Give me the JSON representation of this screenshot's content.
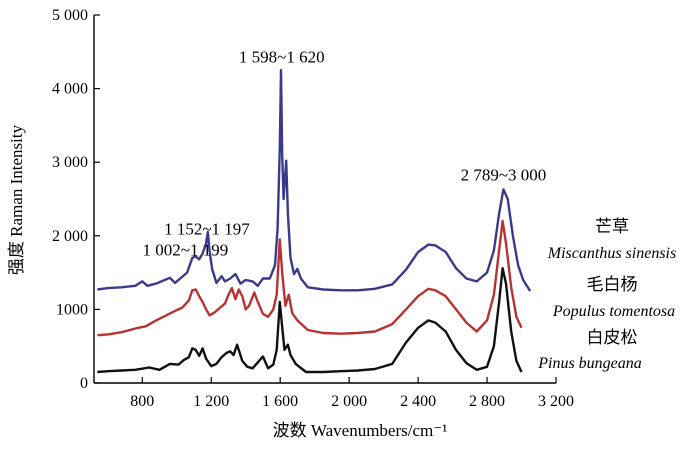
{
  "chart_data": {
    "type": "line",
    "xlabel": "波数 Wavenumbers/cm⁻¹",
    "ylabel": "强度 Raman Intensity",
    "xlim": [
      520,
      3200
    ],
    "ylim": [
      0,
      5000
    ],
    "xticks": [
      {
        "value": 800,
        "label": "800"
      },
      {
        "value": 1200,
        "label": "1 200"
      },
      {
        "value": 1600,
        "label": "1 600"
      },
      {
        "value": 2000,
        "label": "2 000"
      },
      {
        "value": 2400,
        "label": "2 400"
      },
      {
        "value": 2800,
        "label": "2 800"
      },
      {
        "value": 3200,
        "label": "3 200"
      }
    ],
    "yticks": [
      {
        "value": 0,
        "label": "0"
      },
      {
        "value": 1000,
        "label": "1000"
      },
      {
        "value": 2000,
        "label": "2 000"
      },
      {
        "value": 3000,
        "label": "3 000"
      },
      {
        "value": 4000,
        "label": "4 000"
      },
      {
        "value": 5000,
        "label": "5 000"
      }
    ],
    "annotations": [
      {
        "text": "1 598~1 620",
        "x": 1609,
        "y": 4300
      },
      {
        "text": "2 789~3 000",
        "x": 2895,
        "y": 2700
      },
      {
        "text": "1 152~1 197",
        "x": 1175,
        "y": 1960
      },
      {
        "text": "1 002~1 199",
        "x": 1050,
        "y": 1680
      }
    ],
    "series": [
      {
        "name": "芒草",
        "name_latin": "Miscanthus sinensis",
        "color": "#3a3a8c",
        "points": [
          [
            540,
            1270
          ],
          [
            600,
            1290
          ],
          [
            680,
            1300
          ],
          [
            760,
            1320
          ],
          [
            800,
            1380
          ],
          [
            830,
            1320
          ],
          [
            880,
            1350
          ],
          [
            930,
            1400
          ],
          [
            960,
            1430
          ],
          [
            990,
            1360
          ],
          [
            1020,
            1420
          ],
          [
            1060,
            1500
          ],
          [
            1090,
            1700
          ],
          [
            1110,
            1720
          ],
          [
            1130,
            1680
          ],
          [
            1150,
            1760
          ],
          [
            1170,
            1900
          ],
          [
            1180,
            2050
          ],
          [
            1190,
            1800
          ],
          [
            1205,
            1550
          ],
          [
            1230,
            1360
          ],
          [
            1260,
            1450
          ],
          [
            1280,
            1380
          ],
          [
            1310,
            1420
          ],
          [
            1340,
            1480
          ],
          [
            1370,
            1350
          ],
          [
            1400,
            1400
          ],
          [
            1440,
            1380
          ],
          [
            1470,
            1320
          ],
          [
            1500,
            1420
          ],
          [
            1540,
            1420
          ],
          [
            1570,
            1600
          ],
          [
            1585,
            2100
          ],
          [
            1598,
            3200
          ],
          [
            1605,
            4250
          ],
          [
            1612,
            3100
          ],
          [
            1620,
            2500
          ],
          [
            1635,
            3020
          ],
          [
            1645,
            2300
          ],
          [
            1660,
            1700
          ],
          [
            1680,
            1480
          ],
          [
            1700,
            1550
          ],
          [
            1720,
            1420
          ],
          [
            1760,
            1300
          ],
          [
            1850,
            1270
          ],
          [
            1950,
            1260
          ],
          [
            2050,
            1260
          ],
          [
            2150,
            1280
          ],
          [
            2250,
            1340
          ],
          [
            2330,
            1540
          ],
          [
            2400,
            1780
          ],
          [
            2460,
            1880
          ],
          [
            2500,
            1870
          ],
          [
            2560,
            1780
          ],
          [
            2620,
            1560
          ],
          [
            2680,
            1420
          ],
          [
            2740,
            1380
          ],
          [
            2800,
            1500
          ],
          [
            2840,
            1800
          ],
          [
            2870,
            2300
          ],
          [
            2895,
            2630
          ],
          [
            2920,
            2500
          ],
          [
            2950,
            2000
          ],
          [
            2980,
            1600
          ],
          [
            3010,
            1400
          ],
          [
            3050,
            1250
          ]
        ]
      },
      {
        "name": "毛白杨",
        "name_latin": "Populus tomentosa",
        "color": "#b83232",
        "points": [
          [
            540,
            650
          ],
          [
            600,
            660
          ],
          [
            680,
            690
          ],
          [
            760,
            740
          ],
          [
            820,
            770
          ],
          [
            880,
            850
          ],
          [
            940,
            920
          ],
          [
            990,
            980
          ],
          [
            1030,
            1020
          ],
          [
            1070,
            1120
          ],
          [
            1090,
            1260
          ],
          [
            1110,
            1270
          ],
          [
            1130,
            1180
          ],
          [
            1150,
            1100
          ],
          [
            1170,
            1000
          ],
          [
            1190,
            920
          ],
          [
            1220,
            960
          ],
          [
            1250,
            1020
          ],
          [
            1280,
            1080
          ],
          [
            1300,
            1200
          ],
          [
            1320,
            1290
          ],
          [
            1340,
            1140
          ],
          [
            1360,
            1270
          ],
          [
            1380,
            1180
          ],
          [
            1400,
            1000
          ],
          [
            1420,
            1050
          ],
          [
            1450,
            1230
          ],
          [
            1470,
            1100
          ],
          [
            1500,
            940
          ],
          [
            1530,
            900
          ],
          [
            1560,
            1000
          ],
          [
            1580,
            1200
          ],
          [
            1598,
            1950
          ],
          [
            1612,
            1500
          ],
          [
            1630,
            1050
          ],
          [
            1650,
            1200
          ],
          [
            1670,
            950
          ],
          [
            1700,
            850
          ],
          [
            1760,
            720
          ],
          [
            1850,
            680
          ],
          [
            1950,
            670
          ],
          [
            2050,
            680
          ],
          [
            2150,
            700
          ],
          [
            2250,
            800
          ],
          [
            2330,
            1000
          ],
          [
            2400,
            1180
          ],
          [
            2460,
            1280
          ],
          [
            2500,
            1260
          ],
          [
            2560,
            1180
          ],
          [
            2620,
            1000
          ],
          [
            2680,
            820
          ],
          [
            2740,
            700
          ],
          [
            2800,
            850
          ],
          [
            2840,
            1200
          ],
          [
            2870,
            1800
          ],
          [
            2890,
            2200
          ],
          [
            2910,
            1900
          ],
          [
            2940,
            1300
          ],
          [
            2970,
            900
          ],
          [
            3000,
            750
          ]
        ]
      },
      {
        "name": "白皮松",
        "name_latin": "Pinus bungeana",
        "color": "#111111",
        "points": [
          [
            540,
            150
          ],
          [
            600,
            160
          ],
          [
            680,
            170
          ],
          [
            760,
            180
          ],
          [
            840,
            210
          ],
          [
            900,
            180
          ],
          [
            960,
            260
          ],
          [
            1010,
            250
          ],
          [
            1040,
            310
          ],
          [
            1070,
            350
          ],
          [
            1090,
            470
          ],
          [
            1110,
            450
          ],
          [
            1130,
            370
          ],
          [
            1150,
            470
          ],
          [
            1170,
            330
          ],
          [
            1200,
            230
          ],
          [
            1230,
            260
          ],
          [
            1260,
            350
          ],
          [
            1290,
            410
          ],
          [
            1310,
            430
          ],
          [
            1330,
            380
          ],
          [
            1350,
            520
          ],
          [
            1380,
            300
          ],
          [
            1410,
            220
          ],
          [
            1440,
            200
          ],
          [
            1470,
            280
          ],
          [
            1500,
            360
          ],
          [
            1530,
            200
          ],
          [
            1560,
            250
          ],
          [
            1580,
            450
          ],
          [
            1598,
            1100
          ],
          [
            1610,
            800
          ],
          [
            1625,
            450
          ],
          [
            1645,
            520
          ],
          [
            1660,
            380
          ],
          [
            1690,
            260
          ],
          [
            1750,
            150
          ],
          [
            1850,
            150
          ],
          [
            1950,
            160
          ],
          [
            2050,
            170
          ],
          [
            2150,
            190
          ],
          [
            2250,
            260
          ],
          [
            2330,
            550
          ],
          [
            2400,
            750
          ],
          [
            2460,
            850
          ],
          [
            2500,
            820
          ],
          [
            2560,
            700
          ],
          [
            2620,
            450
          ],
          [
            2680,
            270
          ],
          [
            2740,
            180
          ],
          [
            2800,
            220
          ],
          [
            2840,
            500
          ],
          [
            2870,
            1100
          ],
          [
            2890,
            1560
          ],
          [
            2910,
            1350
          ],
          [
            2940,
            700
          ],
          [
            2970,
            300
          ],
          [
            3000,
            150
          ]
        ]
      }
    ]
  }
}
